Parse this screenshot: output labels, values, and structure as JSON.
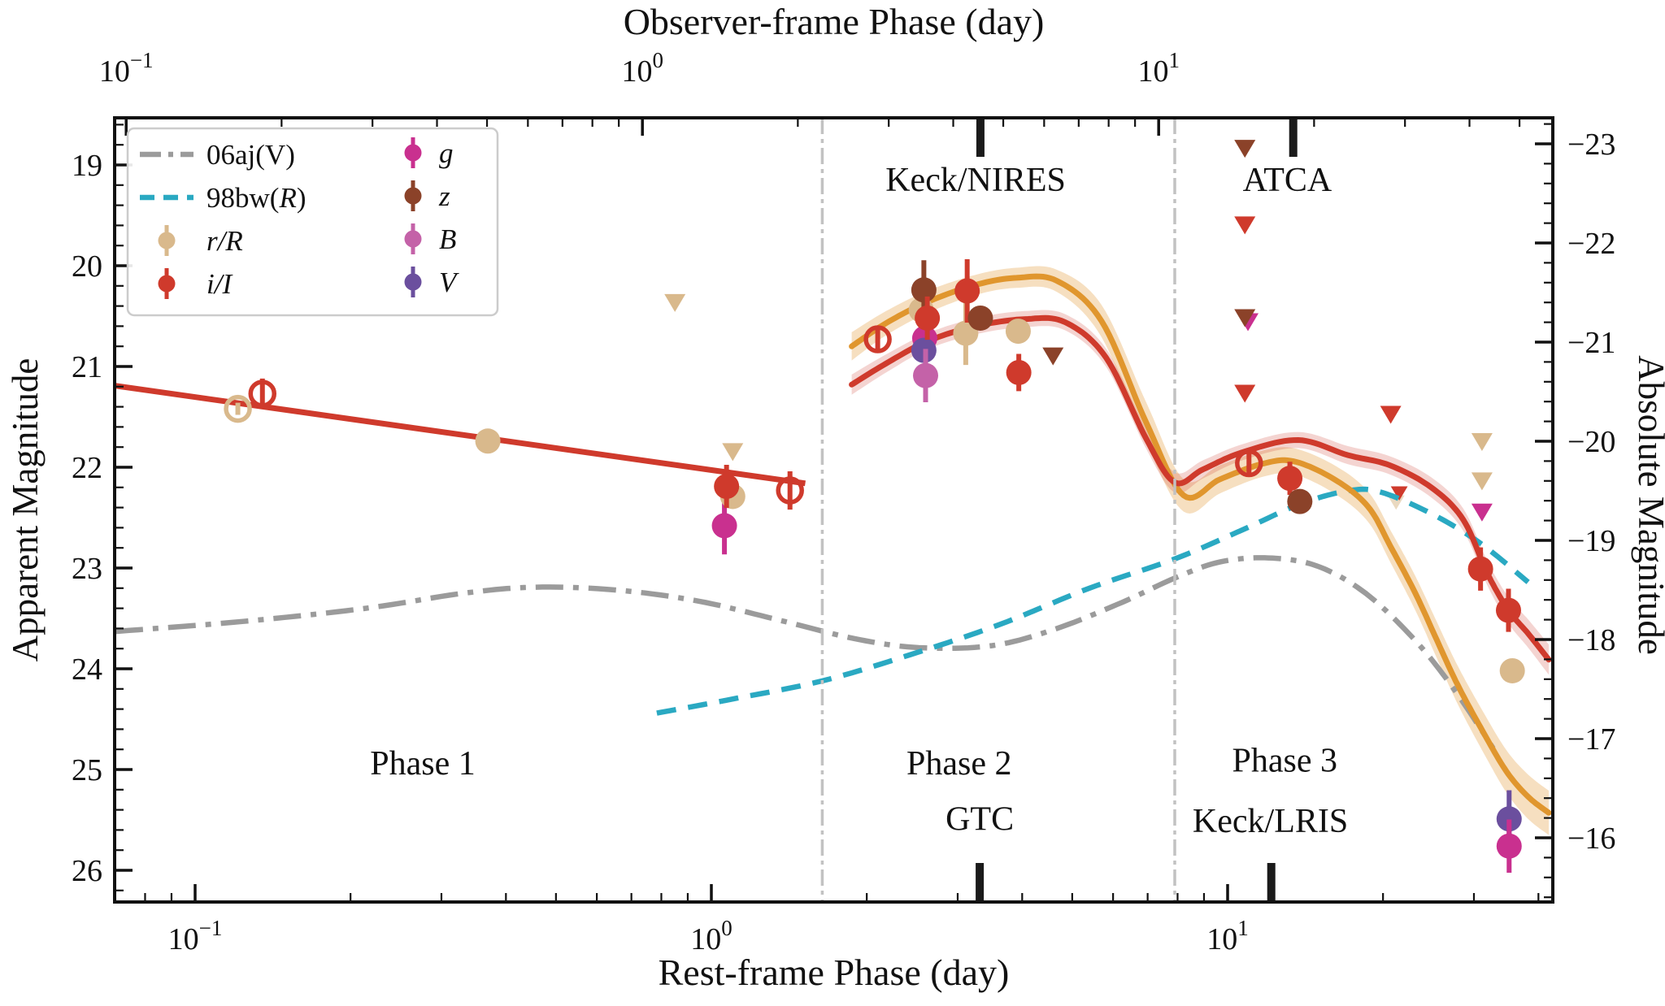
{
  "figure": {
    "background": "#ffffff",
    "axis_color": "#111111"
  },
  "chart_data": {
    "type": "scatter",
    "title_top": "Observer-frame Phase (day)",
    "xlabel_bottom": "Rest-frame Phase (day)",
    "ylabel_left": "Apparent Magnitude",
    "ylabel_right": "Absolute Magnitude",
    "x_scale": "log",
    "x_range_rest_days": [
      0.0698,
      42.7
    ],
    "y_range_apparent_mag": [
      18.53,
      26.31
    ],
    "y_range_absolute_mag": [
      -23.26,
      -15.35
    ],
    "left_major_ticks": [
      19,
      20,
      21,
      22,
      23,
      24,
      25,
      26
    ],
    "right_major_ticks": [
      -23,
      -22,
      -21,
      -20,
      -19,
      -18,
      -17,
      -16
    ],
    "bottom_major_ticks_days": [
      0.1,
      1,
      10
    ],
    "top_major_ticks_days": [
      0.1,
      1,
      10
    ],
    "observer_to_rest_factor": 1.36,
    "grid": false,
    "bands": {
      "r": {
        "label": "r/R",
        "color": "#d9b98c"
      },
      "i": {
        "label": "i/I",
        "color": "#cf3a2c"
      },
      "g": {
        "label": "g",
        "color": "#c9308f"
      },
      "z": {
        "label": "z",
        "color": "#8b4229"
      },
      "B": {
        "label": "B",
        "color": "#c462a8"
      },
      "V": {
        "label": "V",
        "color": "#6b4f9e"
      }
    },
    "legend": {
      "border_color": "#cccccc",
      "col1": [
        {
          "type": "dashdot",
          "color": "#9b9b9b",
          "label": [
            {
              "t": "06aj(V)"
            }
          ]
        },
        {
          "type": "dashed",
          "color": "#2aa9c2",
          "label": [
            {
              "t": "98bw("
            },
            {
              "t": "R",
              "i": 1
            },
            {
              "t": ")"
            }
          ]
        },
        {
          "type": "marker",
          "band": "r",
          "label": [
            {
              "t": "r/R",
              "i": 1
            }
          ]
        },
        {
          "type": "marker",
          "band": "i",
          "label": [
            {
              "t": "i/I",
              "i": 1
            }
          ]
        }
      ],
      "col2": [
        {
          "type": "marker",
          "band": "g",
          "label": [
            {
              "t": "g",
              "i": 1
            }
          ]
        },
        {
          "type": "marker",
          "band": "z",
          "label": [
            {
              "t": "z",
              "i": 1
            }
          ]
        },
        {
          "type": "marker",
          "band": "B",
          "label": [
            {
              "t": "B",
              "i": 1
            }
          ]
        },
        {
          "type": "marker",
          "band": "V",
          "label": [
            {
              "t": "V",
              "i": 1
            }
          ]
        }
      ]
    },
    "phase_dividers_days": [
      1.64,
      7.9
    ],
    "phase_labels": [
      {
        "label": "Phase 1",
        "day": 0.276,
        "mag": 25.05
      },
      {
        "label": "Phase 2",
        "day": 3.02,
        "mag": 25.05
      },
      {
        "label": "Phase 3",
        "day": 12.9,
        "mag": 25.02
      }
    ],
    "instruments": [
      {
        "label": "Keck/NIRES",
        "side": "top",
        "tick_day": 3.32,
        "label_day": 3.25,
        "label_mag": 19.26
      },
      {
        "label": "ATCA",
        "side": "top",
        "tick_day": 13.4,
        "label_day": 13.05,
        "label_mag": 19.26
      },
      {
        "label": "GTC",
        "side": "bottom",
        "tick_day": 3.31,
        "label_day": 3.31,
        "label_mag": 25.6
      },
      {
        "label": "Keck/LRIS",
        "side": "bottom",
        "tick_day": 12.15,
        "label_day": 12.1,
        "label_mag": 25.62
      }
    ],
    "fit_line_phase1": {
      "color": "#cf3a2c",
      "points": [
        [
          0.0698,
          21.19
        ],
        [
          1.52,
          22.16
        ]
      ]
    },
    "model_curves": [
      {
        "name": "r-band model",
        "color": "#e0962e",
        "band_fill": "rgba(224,150,46,0.30)",
        "points": [
          [
            1.87,
            20.8,
            0.14
          ],
          [
            2.18,
            20.57,
            0.12
          ],
          [
            2.62,
            20.36,
            0.11
          ],
          [
            3.25,
            20.19,
            0.1
          ],
          [
            3.9,
            20.12,
            0.1
          ],
          [
            4.67,
            20.15,
            0.11
          ],
          [
            5.7,
            20.55,
            0.16
          ],
          [
            6.96,
            21.56,
            0.2
          ],
          [
            8.22,
            22.28,
            0.16
          ],
          [
            9.66,
            22.12,
            0.14
          ],
          [
            11.6,
            21.97,
            0.13
          ],
          [
            13.4,
            21.94,
            0.13
          ],
          [
            16.1,
            22.12,
            0.14
          ],
          [
            18.7,
            22.39,
            0.15
          ],
          [
            20.7,
            22.79,
            0.16
          ],
          [
            23.1,
            23.25,
            0.17
          ],
          [
            25.4,
            23.71,
            0.18
          ],
          [
            27.9,
            24.16,
            0.19
          ],
          [
            31.2,
            24.62,
            0.2
          ],
          [
            34.7,
            25.02,
            0.21
          ],
          [
            38.2,
            25.27,
            0.22
          ],
          [
            41.9,
            25.43,
            0.22
          ]
        ]
      },
      {
        "name": "i-band model",
        "color": "#cf3a2c",
        "band_fill": "rgba(207,58,44,0.22)",
        "points": [
          [
            1.87,
            21.18,
            0.1
          ],
          [
            2.18,
            20.97,
            0.09
          ],
          [
            2.62,
            20.75,
            0.08
          ],
          [
            3.25,
            20.6,
            0.08
          ],
          [
            4.04,
            20.53,
            0.08
          ],
          [
            4.84,
            20.56,
            0.08
          ],
          [
            5.81,
            20.91,
            0.09
          ],
          [
            6.96,
            21.72,
            0.1
          ],
          [
            7.9,
            22.15,
            0.1
          ],
          [
            8.97,
            22.02,
            0.09
          ],
          [
            10.7,
            21.85,
            0.08
          ],
          [
            13.7,
            21.73,
            0.08
          ],
          [
            17.1,
            21.88,
            0.09
          ],
          [
            20.6,
            21.98,
            0.09
          ],
          [
            24.8,
            22.2,
            0.1
          ],
          [
            28.6,
            22.52,
            0.11
          ],
          [
            31.9,
            23.06,
            0.12
          ],
          [
            35.0,
            23.42,
            0.13
          ],
          [
            38.2,
            23.65,
            0.14
          ],
          [
            41.9,
            23.91,
            0.15
          ]
        ]
      }
    ],
    "comparison_curves": [
      {
        "name": "06aj(V)",
        "style": "dashdot",
        "color": "#9b9b9b",
        "points": [
          [
            0.0701,
            23.63
          ],
          [
            0.124,
            23.53
          ],
          [
            0.214,
            23.4
          ],
          [
            0.331,
            23.25
          ],
          [
            0.458,
            23.19
          ],
          [
            0.659,
            23.22
          ],
          [
            0.947,
            23.33
          ],
          [
            1.36,
            23.52
          ],
          [
            1.89,
            23.7
          ],
          [
            2.52,
            23.79
          ],
          [
            3.5,
            23.77
          ],
          [
            4.67,
            23.6
          ],
          [
            6.25,
            23.34
          ],
          [
            7.9,
            23.1
          ],
          [
            9.66,
            22.94
          ],
          [
            12.0,
            22.9
          ],
          [
            14.9,
            22.98
          ],
          [
            18.5,
            23.25
          ],
          [
            23.1,
            23.72
          ],
          [
            27.6,
            24.22
          ],
          [
            32.7,
            24.79
          ]
        ]
      },
      {
        "name": "98bw(R)",
        "style": "dashed",
        "color": "#2aa9c2",
        "points": [
          [
            0.784,
            24.44
          ],
          [
            1.1,
            24.3
          ],
          [
            1.64,
            24.12
          ],
          [
            2.43,
            23.86
          ],
          [
            3.62,
            23.56
          ],
          [
            5.4,
            23.2
          ],
          [
            7.9,
            22.91
          ],
          [
            10.7,
            22.62
          ],
          [
            13.9,
            22.36
          ],
          [
            17.3,
            22.23
          ],
          [
            19.9,
            22.25
          ],
          [
            24.8,
            22.46
          ],
          [
            30.8,
            22.75
          ],
          [
            38.2,
            23.14
          ]
        ]
      }
    ],
    "points": [
      {
        "band": "r",
        "open": true,
        "day": 0.121,
        "mag": 21.42,
        "err": 0.06
      },
      {
        "band": "i",
        "open": true,
        "day": 0.135,
        "mag": 21.27,
        "err": 0.15
      },
      {
        "band": "r",
        "open": false,
        "day": 0.369,
        "mag": 21.74
      },
      {
        "band": "g",
        "open": false,
        "day": 1.06,
        "mag": 22.58,
        "err": 0.22
      },
      {
        "band": "r",
        "open": false,
        "day": 1.1,
        "mag": 22.29
      },
      {
        "band": "i",
        "open": false,
        "day": 1.07,
        "mag": 22.19,
        "err": 0.15
      },
      {
        "band": "i",
        "open": true,
        "day": 1.42,
        "mag": 22.23,
        "err": 0.19
      },
      {
        "band": "i",
        "open": true,
        "day": 2.1,
        "mag": 20.73,
        "err": 0.12
      },
      {
        "band": "r",
        "open": false,
        "day": 2.55,
        "mag": 20.44
      },
      {
        "band": "z",
        "open": false,
        "day": 2.58,
        "mag": 20.24,
        "err": 0.23
      },
      {
        "band": "g",
        "open": false,
        "day": 2.59,
        "mag": 20.72
      },
      {
        "band": "V",
        "open": false,
        "day": 2.58,
        "mag": 20.84
      },
      {
        "band": "B",
        "open": false,
        "day": 2.6,
        "mag": 21.09,
        "err": 0.2
      },
      {
        "band": "i",
        "open": false,
        "day": 2.62,
        "mag": 20.52,
        "err": 0.15
      },
      {
        "band": "r",
        "open": false,
        "day": 3.11,
        "mag": 20.67,
        "err": 0.25
      },
      {
        "band": "i",
        "open": false,
        "day": 3.13,
        "mag": 20.25,
        "err": 0.25
      },
      {
        "band": "z",
        "open": false,
        "day": 3.32,
        "mag": 20.52
      },
      {
        "band": "r",
        "open": false,
        "day": 3.93,
        "mag": 20.65
      },
      {
        "band": "i",
        "open": false,
        "day": 3.94,
        "mag": 21.06,
        "err": 0.12
      },
      {
        "band": "i",
        "open": true,
        "day": 11.0,
        "mag": 21.96,
        "err": 0.12
      },
      {
        "band": "i",
        "open": false,
        "day": 13.2,
        "mag": 22.11,
        "err": 0.1
      },
      {
        "band": "z",
        "open": false,
        "day": 13.8,
        "mag": 22.34
      },
      {
        "band": "i",
        "open": false,
        "day": 30.9,
        "mag": 23.01,
        "err": 0.15
      },
      {
        "band": "i",
        "open": false,
        "day": 35.0,
        "mag": 23.42,
        "err": 0.15
      },
      {
        "band": "r",
        "open": false,
        "day": 35.6,
        "mag": 24.02
      },
      {
        "band": "V",
        "open": false,
        "day": 35.1,
        "mag": 25.49,
        "err": 0.22
      },
      {
        "band": "g",
        "open": false,
        "day": 35.1,
        "mag": 25.76,
        "err": 0.2
      }
    ],
    "upper_limits": [
      {
        "band": "r",
        "day": 0.85,
        "mag": 20.37
      },
      {
        "band": "r",
        "day": 1.1,
        "mag": 21.85
      },
      {
        "band": "z",
        "day": 4.59,
        "mag": 20.9
      },
      {
        "band": "z",
        "day": 10.8,
        "mag": 18.84
      },
      {
        "band": "i",
        "day": 10.8,
        "mag": 19.6
      },
      {
        "band": "g",
        "day": 10.95,
        "mag": 20.56
      },
      {
        "band": "z",
        "day": 10.8,
        "mag": 20.52
      },
      {
        "band": "i",
        "day": 10.8,
        "mag": 21.27
      },
      {
        "band": "i",
        "day": 20.7,
        "mag": 21.48
      },
      {
        "band": "r",
        "day": 21.2,
        "mag": 22.35,
        "alpha": 0.55,
        "behind": true,
        "size": 0.8
      },
      {
        "band": "i",
        "day": 21.5,
        "mag": 22.26,
        "behind": true,
        "size": 0.8
      },
      {
        "band": "r",
        "day": 31.1,
        "mag": 21.75
      },
      {
        "band": "r",
        "day": 31.1,
        "mag": 22.14
      },
      {
        "band": "g",
        "day": 31.1,
        "mag": 22.45
      }
    ]
  }
}
